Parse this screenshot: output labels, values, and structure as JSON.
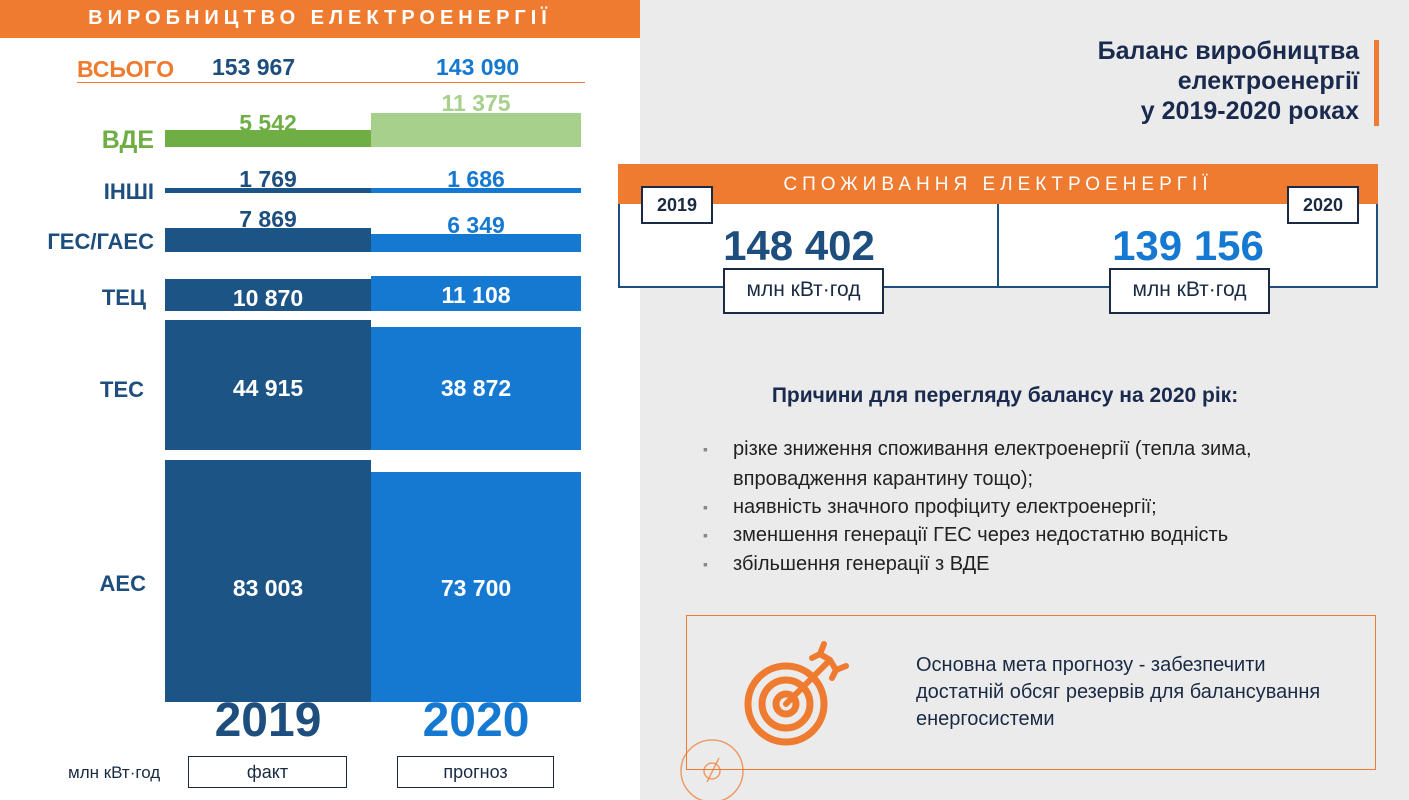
{
  "left_header": "ВИРОБНИЦТВО ЕЛЕКТРОЕНЕРГІЇ",
  "total": {
    "label": "ВСЬОГО",
    "v2019": "153 967",
    "v2020": "143 090"
  },
  "rows": [
    {
      "label": "ВДЕ",
      "v2019": "5 542",
      "v2020": "11 375"
    },
    {
      "label": "ІНШІ",
      "v2019": "1 769",
      "v2020": "1 686"
    },
    {
      "label": "ГЕС/ГАЕС",
      "v2019": "7 869",
      "v2020": "6 349"
    },
    {
      "label": "ТЕЦ",
      "v2019": "10 870",
      "v2020": "11 108"
    },
    {
      "label": "ТЕС",
      "v2019": "44 915",
      "v2020": "38 872"
    },
    {
      "label": "АЕС",
      "v2019": "83 003",
      "v2020": "73 700"
    }
  ],
  "years": {
    "y2019": "2019",
    "y2020": "2020"
  },
  "unit_left": "млн кВт·год",
  "fact_label": "факт",
  "forecast_label": "прогноз",
  "title_lines": [
    "Баланс виробництва",
    "електроенергії",
    "у 2019-2020 роках"
  ],
  "consumption": {
    "header": "СПОЖИВАННЯ ЕЛЕКТРОЕНЕРГІЇ",
    "year1": "2019",
    "value1": "148 402",
    "year2": "2020",
    "value2": "139 156",
    "unit": "млн кВт·год"
  },
  "reasons": {
    "title": "Причини для перегляду балансу на 2020 рік:",
    "items": [
      "різке зниження споживання електроенергії (тепла зима, впровадження карантину тощо);",
      "наявність значного профіциту електроенергії;",
      "зменшення генерації ГЕС через недостатню водність",
      "збільшення генерації з ВДЕ"
    ]
  },
  "goal_text": "Основна мета прогнозу - забезпечити достатній обсяг резервів для балансування енергосистеми",
  "colors": {
    "orange": "#ee7b30",
    "navy": "#1d5486",
    "blue": "#1579d1",
    "green_2019": "#6fae44",
    "green_2020": "#a8d08d"
  }
}
